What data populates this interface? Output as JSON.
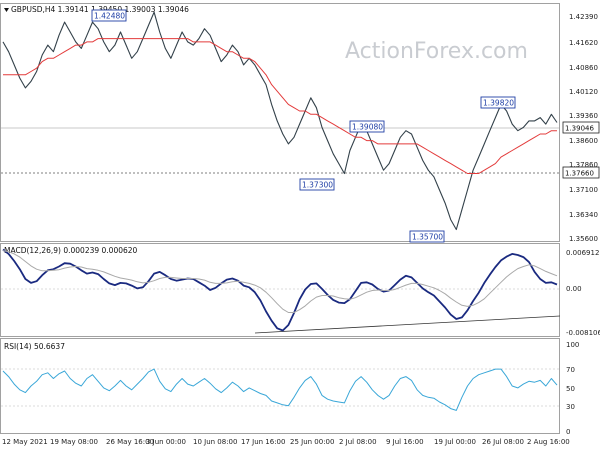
{
  "chart_data": [
    {
      "type": "line",
      "symbol_header": "GBPUSD,H4  1.39141 1.39450 1.39003 1.39046",
      "watermark": "ActionForex.com",
      "ylim": [
        1.3545,
        1.4265
      ],
      "y_ticks": [
        "1.42390",
        "1.41620",
        "1.40860",
        "1.40120",
        "1.39360",
        "1.38600",
        "1.37860",
        "1.37100",
        "1.36340",
        "1.35600"
      ],
      "current_price": "1.39046",
      "support_level": "1.37660",
      "annotations": [
        "1.42480",
        "1.39080",
        "1.37300",
        "1.35700",
        "1.39820"
      ],
      "series": [
        {
          "values": [
            1.415,
            1.412,
            1.408,
            1.404,
            1.401,
            1.403,
            1.406,
            1.411,
            1.414,
            1.412,
            1.417,
            1.421,
            1.418,
            1.415,
            1.413,
            1.417,
            1.421,
            1.419,
            1.415,
            1.412,
            1.414,
            1.418,
            1.414,
            1.41,
            1.412,
            1.416,
            1.42,
            1.424,
            1.418,
            1.413,
            1.41,
            1.414,
            1.418,
            1.415,
            1.414,
            1.416,
            1.419,
            1.417,
            1.413,
            1.409,
            1.411,
            1.414,
            1.412,
            1.408,
            1.41,
            1.408,
            1.405,
            1.402,
            1.396,
            1.391,
            1.387,
            1.384,
            1.386,
            1.39,
            1.394,
            1.398,
            1.395,
            1.389,
            1.385,
            1.381,
            1.378,
            1.375,
            1.382,
            1.386,
            1.39,
            1.388,
            1.384,
            1.38,
            1.376,
            1.378,
            1.382,
            1.386,
            1.388,
            1.387,
            1.383,
            1.379,
            1.376,
            1.374,
            1.37,
            1.366,
            1.361,
            1.358,
            1.364,
            1.37,
            1.376,
            1.38,
            1.384,
            1.388,
            1.392,
            1.396,
            1.394,
            1.39,
            1.388,
            1.389,
            1.391,
            1.391,
            1.392,
            1.39,
            1.393,
            1.3905
          ]
        },
        {
          "values": [
            1.405,
            1.405,
            1.405,
            1.405,
            1.405,
            1.406,
            1.407,
            1.409,
            1.41,
            1.41,
            1.411,
            1.412,
            1.413,
            1.414,
            1.414,
            1.415,
            1.415,
            1.416,
            1.416,
            1.416,
            1.416,
            1.416,
            1.416,
            1.416,
            1.416,
            1.416,
            1.416,
            1.416,
            1.416,
            1.416,
            1.416,
            1.416,
            1.416,
            1.416,
            1.415,
            1.415,
            1.415,
            1.415,
            1.414,
            1.413,
            1.412,
            1.412,
            1.411,
            1.41,
            1.41,
            1.409,
            1.407,
            1.405,
            1.402,
            1.4,
            1.398,
            1.396,
            1.395,
            1.394,
            1.394,
            1.393,
            1.393,
            1.392,
            1.391,
            1.39,
            1.389,
            1.388,
            1.387,
            1.386,
            1.386,
            1.385,
            1.385,
            1.384,
            1.384,
            1.384,
            1.384,
            1.384,
            1.384,
            1.384,
            1.384,
            1.383,
            1.382,
            1.381,
            1.38,
            1.379,
            1.378,
            1.377,
            1.376,
            1.375,
            1.375,
            1.375,
            1.376,
            1.377,
            1.378,
            1.38,
            1.381,
            1.382,
            1.383,
            1.384,
            1.385,
            1.386,
            1.387,
            1.387,
            1.388,
            1.388
          ]
        }
      ]
    },
    {
      "type": "line",
      "title": "MACD(12,26,9) 0.000239 0.000620",
      "ylim": [
        -0.0092,
        0.0076
      ],
      "y_ticks": [
        "0.006912",
        "0.00",
        "-0.008106"
      ],
      "series": [
        {
          "values": [
            0.0066,
            0.0058,
            0.0045,
            0.003,
            0.0012,
            0.0005,
            0.0008,
            0.0019,
            0.0028,
            0.003,
            0.0035,
            0.0041,
            0.004,
            0.0035,
            0.0028,
            0.0022,
            0.0024,
            0.0021,
            0.0012,
            0.0004,
            0.0001,
            0.0005,
            0.0004,
            0.0,
            -0.0005,
            -0.0003,
            0.0008,
            0.0022,
            0.0025,
            0.0019,
            0.0012,
            0.0009,
            0.0011,
            0.0013,
            0.0012,
            0.0006,
            0.0,
            -0.0008,
            -0.0004,
            0.0004,
            0.0011,
            0.0013,
            0.0009,
            0.0,
            -0.0003,
            -0.0012,
            -0.0027,
            -0.0047,
            -0.0064,
            -0.0078,
            -0.0082,
            -0.0072,
            -0.005,
            -0.0025,
            -0.0007,
            0.0003,
            0.0004,
            -0.0006,
            -0.0017,
            -0.0026,
            -0.0031,
            -0.0032,
            -0.0025,
            -0.001,
            0.0005,
            0.0006,
            0.0002,
            -0.0006,
            -0.0011,
            -0.0009,
            0.0001,
            0.0011,
            0.0018,
            0.0015,
            0.0005,
            -0.0005,
            -0.0012,
            -0.0018,
            -0.0029,
            -0.004,
            -0.0053,
            -0.0061,
            -0.0058,
            -0.0045,
            -0.0028,
            -0.0013,
            0.0005,
            0.002,
            0.0034,
            0.0046,
            0.0053,
            0.0058,
            0.0056,
            0.0052,
            0.0043,
            0.0025,
            0.0012,
            0.0005,
            0.0006,
            0.0002
          ]
        },
        {
          "values": [
            0.0064,
            0.0062,
            0.0058,
            0.0052,
            0.0044,
            0.0036,
            0.003,
            0.0027,
            0.0027,
            0.0028,
            0.0029,
            0.0032,
            0.0034,
            0.0035,
            0.0034,
            0.0031,
            0.003,
            0.0028,
            0.0025,
            0.0021,
            0.0017,
            0.0014,
            0.0012,
            0.001,
            0.0007,
            0.0005,
            0.0006,
            0.0009,
            0.0013,
            0.0015,
            0.0015,
            0.0014,
            0.0013,
            0.0013,
            0.0013,
            0.0012,
            0.001,
            0.0006,
            0.0004,
            0.0004,
            0.0005,
            0.0007,
            0.0008,
            0.0006,
            0.0004,
            0.0001,
            -0.0004,
            -0.0012,
            -0.0022,
            -0.0033,
            -0.0043,
            -0.0049,
            -0.0049,
            -0.0044,
            -0.0037,
            -0.0028,
            -0.0021,
            -0.0018,
            -0.0018,
            -0.0019,
            -0.0022,
            -0.0024,
            -0.0025,
            -0.0022,
            -0.0017,
            -0.0012,
            -0.0009,
            -0.0008,
            -0.0009,
            -0.0009,
            -0.0007,
            -0.0003,
            0.0001,
            0.0004,
            0.0004,
            0.0002,
            -0.0001,
            -0.0004,
            -0.0009,
            -0.0015,
            -0.0023,
            -0.003,
            -0.0036,
            -0.0038,
            -0.0036,
            -0.0031,
            -0.0024,
            -0.0014,
            -0.0004,
            0.0006,
            0.0016,
            0.0024,
            0.0031,
            0.0035,
            0.0038,
            0.0036,
            0.0031,
            0.0026,
            0.0022,
            0.0018
          ]
        }
      ]
    },
    {
      "type": "line",
      "title": "RSI(14) 50.6637",
      "ylim": [
        0,
        100
      ],
      "y_ticks": [
        "100",
        "70",
        "50",
        "30",
        "0"
      ],
      "x_ticks": [
        "12 May 2021",
        "19 May 08:00",
        "26 May 16:00",
        "3 Jun 00:00",
        "10 Jun 08:00",
        "17 Jun 16:00",
        "25 Jun 00:00",
        "2 Jul 08:00",
        "9 Jul 16:00",
        "19 Jul 00:00",
        "26 Jul 08:00",
        "2 Aug 16:00"
      ],
      "series": [
        {
          "values": [
            66,
            60,
            52,
            46,
            43,
            50,
            55,
            62,
            64,
            58,
            63,
            66,
            58,
            53,
            50,
            58,
            62,
            55,
            48,
            45,
            50,
            56,
            50,
            46,
            52,
            58,
            65,
            68,
            55,
            47,
            44,
            52,
            58,
            52,
            50,
            54,
            58,
            53,
            47,
            43,
            48,
            54,
            50,
            44,
            48,
            45,
            42,
            40,
            34,
            32,
            30,
            29,
            38,
            48,
            56,
            60,
            52,
            40,
            36,
            34,
            33,
            32,
            45,
            55,
            60,
            54,
            46,
            40,
            36,
            40,
            50,
            58,
            60,
            56,
            46,
            40,
            38,
            37,
            33,
            30,
            26,
            24,
            38,
            50,
            58,
            62,
            64,
            66,
            68,
            68,
            60,
            50,
            48,
            52,
            55,
            54,
            56,
            50,
            58,
            51
          ]
        }
      ]
    }
  ]
}
